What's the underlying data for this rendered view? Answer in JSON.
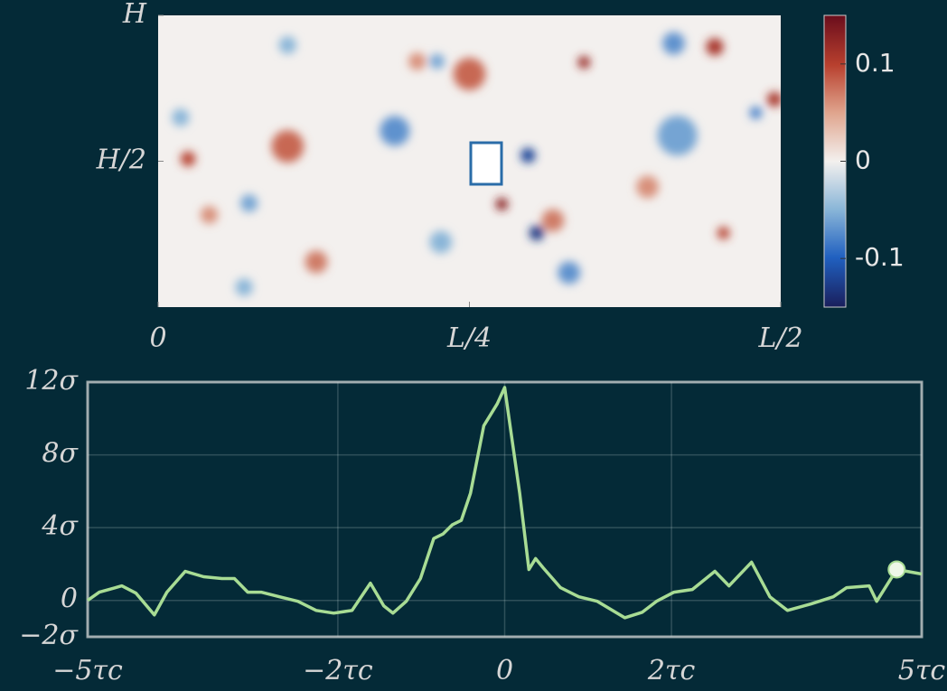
{
  "chart_data": [
    {
      "type": "heatmap",
      "xlim": [
        0,
        0.5
      ],
      "xticks": [
        0,
        {
          "value": 0.25,
          "label": "L/4"
        },
        {
          "value": 0.5,
          "label": "L/2"
        }
      ],
      "ylim": [
        0,
        1
      ],
      "yticks": [
        {
          "value": 0.5,
          "label": "H/2"
        },
        {
          "value": 1,
          "label": "H"
        }
      ],
      "clim": [
        -0.15,
        0.15
      ],
      "cticks": [
        -0.1,
        0,
        0.1
      ],
      "x": [
        0.104,
        0.024,
        0.25,
        0.19,
        0.297,
        0.276,
        0.304,
        0.317,
        0.33,
        0.447,
        0.342,
        0.417,
        0.393,
        0.227,
        0.073,
        0.104,
        0.208,
        0.224,
        0.495,
        0.48,
        0.454,
        0.041,
        0.018,
        0.127,
        0.069,
        0.414
      ],
      "y": [
        0.551,
        0.508,
        0.799,
        0.604,
        0.52,
        0.353,
        0.254,
        0.297,
        0.118,
        0.892,
        0.839,
        0.588,
        0.412,
        0.223,
        0.356,
        0.898,
        0.842,
        0.842,
        0.712,
        0.666,
        0.254,
        0.316,
        0.65,
        0.155,
        0.068,
        0.904
      ],
      "values": [
        0.08,
        0.1,
        0.08,
        -0.07,
        -0.12,
        0.13,
        -0.13,
        0.07,
        -0.07,
        0.11,
        0.12,
        -0.06,
        0.06,
        -0.05,
        -0.06,
        -0.05,
        0.06,
        -0.06,
        0.11,
        -0.08,
        0.1,
        0.06,
        -0.05,
        0.07,
        -0.05,
        -0.07
      ],
      "r": [
        0.013,
        0.006,
        0.013,
        0.012,
        0.006,
        0.005,
        0.006,
        0.009,
        0.009,
        0.007,
        0.005,
        0.016,
        0.009,
        0.009,
        0.007,
        0.007,
        0.007,
        0.006,
        0.006,
        0.005,
        0.005,
        0.007,
        0.007,
        0.009,
        0.007,
        0.009
      ]
    },
    {
      "type": "line",
      "color": "#a8dc94",
      "grid": true,
      "xlim": [
        -5,
        5
      ],
      "xticks": [
        {
          "value": -5,
          "label": "−5τc"
        },
        {
          "value": -2,
          "label": "−2τc"
        },
        0,
        {
          "value": 2,
          "label": "2τc"
        },
        {
          "value": 5,
          "label": "5τc"
        }
      ],
      "ylim": [
        -2,
        12
      ],
      "yticks": [
        {
          "value": -2,
          "label": "−2σ"
        },
        0,
        {
          "value": 4,
          "label": "4σ"
        },
        {
          "value": 8,
          "label": "8σ"
        },
        {
          "value": 12,
          "label": "12σ"
        }
      ],
      "x": [
        -5,
        -4.86,
        -4.59,
        -4.42,
        -4.2,
        -4.05,
        -3.83,
        -3.61,
        -3.39,
        -3.24,
        -3.08,
        -2.92,
        -2.7,
        -2.48,
        -2.26,
        -2.05,
        -1.83,
        -1.61,
        -1.45,
        -1.34,
        -1.18,
        -1.01,
        -0.85,
        -0.74,
        -0.63,
        -0.52,
        -0.41,
        -0.25,
        -0.09,
        0,
        0.08,
        0.18,
        0.29,
        0.37,
        0.46,
        0.67,
        0.89,
        1.11,
        1.44,
        1.65,
        1.82,
        2.03,
        2.25,
        2.52,
        2.69,
        2.96,
        3.18,
        3.39,
        3.67,
        3.94,
        4.1,
        4.37,
        4.46,
        4.7,
        5
      ],
      "values": [
        0,
        0.45,
        0.8,
        0.4,
        -0.8,
        0.45,
        1.6,
        1.3,
        1.2,
        1.2,
        0.45,
        0.45,
        0.2,
        -0.05,
        -0.55,
        -0.7,
        -0.55,
        0.95,
        -0.3,
        -0.7,
        -0.05,
        1.2,
        3.4,
        3.65,
        4.15,
        4.4,
        5.9,
        9.6,
        10.8,
        11.7,
        9.1,
        5.9,
        1.7,
        2.3,
        1.8,
        0.7,
        0.2,
        -0.05,
        -0.95,
        -0.65,
        -0.05,
        0.45,
        0.6,
        1.6,
        0.8,
        2.1,
        0.2,
        -0.55,
        -0.2,
        0.2,
        0.7,
        0.8,
        -0.05,
        1.7,
        1.45
      ],
      "marker": {
        "x": 4.7,
        "y": 1.7
      }
    }
  ]
}
